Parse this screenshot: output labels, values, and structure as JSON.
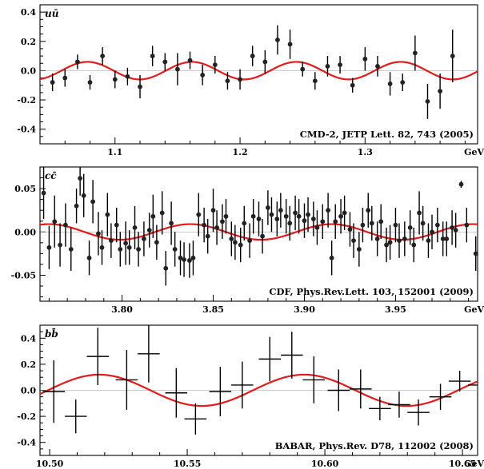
{
  "chart_data": [
    {
      "type": "scatter",
      "panel_label": "uū",
      "citation": "CMD-2, JETP Lett. 82, 743 (2005)",
      "x_unit": "GeV",
      "xlim": [
        1.04,
        1.39
      ],
      "ylim": [
        -0.5,
        0.45
      ],
      "x_ticks": [
        1.1,
        1.2,
        1.3
      ],
      "x_tick_labels": [
        "1.1",
        "1.2",
        "1.3"
      ],
      "y_ticks": [
        -0.4,
        -0.2,
        0.0,
        0.2,
        0.4
      ],
      "y_tick_labels": [
        "-0.4",
        "-0.2",
        "0.0",
        "0.2",
        "0.4"
      ],
      "marker": "dot",
      "points": [
        {
          "x": 1.05,
          "y": -0.08,
          "err": 0.06
        },
        {
          "x": 1.06,
          "y": -0.05,
          "err": 0.06
        },
        {
          "x": 1.07,
          "y": 0.06,
          "err": 0.05
        },
        {
          "x": 1.08,
          "y": -0.08,
          "err": 0.05
        },
        {
          "x": 1.09,
          "y": 0.1,
          "err": 0.06
        },
        {
          "x": 1.1,
          "y": -0.06,
          "err": 0.06
        },
        {
          "x": 1.11,
          "y": -0.04,
          "err": 0.06
        },
        {
          "x": 1.12,
          "y": -0.11,
          "err": 0.08
        },
        {
          "x": 1.13,
          "y": 0.1,
          "err": 0.07
        },
        {
          "x": 1.14,
          "y": 0.06,
          "err": 0.06
        },
        {
          "x": 1.15,
          "y": 0.01,
          "err": 0.11
        },
        {
          "x": 1.16,
          "y": 0.07,
          "err": 0.06
        },
        {
          "x": 1.17,
          "y": -0.03,
          "err": 0.07
        },
        {
          "x": 1.18,
          "y": 0.04,
          "err": 0.06
        },
        {
          "x": 1.19,
          "y": -0.07,
          "err": 0.06
        },
        {
          "x": 1.2,
          "y": -0.06,
          "err": 0.07
        },
        {
          "x": 1.21,
          "y": 0.1,
          "err": 0.07
        },
        {
          "x": 1.22,
          "y": 0.06,
          "err": 0.08
        },
        {
          "x": 1.23,
          "y": 0.21,
          "err": 0.1
        },
        {
          "x": 1.24,
          "y": 0.18,
          "err": 0.1
        },
        {
          "x": 1.25,
          "y": 0.01,
          "err": 0.05
        },
        {
          "x": 1.26,
          "y": -0.07,
          "err": 0.06
        },
        {
          "x": 1.27,
          "y": 0.03,
          "err": 0.07
        },
        {
          "x": 1.28,
          "y": 0.04,
          "err": 0.06
        },
        {
          "x": 1.29,
          "y": -0.1,
          "err": 0.05
        },
        {
          "x": 1.3,
          "y": 0.08,
          "err": 0.08
        },
        {
          "x": 1.31,
          "y": 0.03,
          "err": 0.07
        },
        {
          "x": 1.32,
          "y": -0.09,
          "err": 0.08
        },
        {
          "x": 1.33,
          "y": -0.08,
          "err": 0.06
        },
        {
          "x": 1.34,
          "y": 0.12,
          "err": 0.12
        },
        {
          "x": 1.35,
          "y": -0.21,
          "err": 0.12
        },
        {
          "x": 1.36,
          "y": -0.14,
          "err": 0.12
        },
        {
          "x": 1.37,
          "y": 0.1,
          "err": 0.18
        }
      ],
      "curve": {
        "color": "#e41a1c",
        "amplitude": 0.06,
        "period": 0.0835,
        "peak_x": 1.078,
        "offset": 0.0
      }
    },
    {
      "type": "scatter",
      "panel_label": "cc̄",
      "citation": "CDF, Phys.Rev.Lett. 103, 152001 (2009)",
      "x_unit": "GeV",
      "xlim": [
        3.755,
        3.995
      ],
      "ylim": [
        -0.08,
        0.075
      ],
      "x_ticks": [
        3.8,
        3.85,
        3.9,
        3.95
      ],
      "x_tick_labels": [
        "3.80",
        "3.85",
        "3.90",
        "3.95"
      ],
      "y_ticks": [
        -0.05,
        0.0,
        0.05
      ],
      "y_tick_labels": [
        "-0.05",
        "0.00",
        "0.05"
      ],
      "marker": "dot",
      "points": [
        {
          "x": 3.757,
          "y": 0.045,
          "err": 0.03
        },
        {
          "x": 3.76,
          "y": -0.018,
          "err": 0.025
        },
        {
          "x": 3.763,
          "y": 0.012,
          "err": 0.03
        },
        {
          "x": 3.766,
          "y": -0.015,
          "err": 0.025
        },
        {
          "x": 3.769,
          "y": 0.008,
          "err": 0.025
        },
        {
          "x": 3.772,
          "y": -0.02,
          "err": 0.025
        },
        {
          "x": 3.775,
          "y": 0.03,
          "err": 0.02
        },
        {
          "x": 3.777,
          "y": 0.062,
          "err": 0.02
        },
        {
          "x": 3.779,
          "y": 0.042,
          "err": 0.025
        },
        {
          "x": 3.782,
          "y": -0.03,
          "err": 0.02
        },
        {
          "x": 3.784,
          "y": 0.035,
          "err": 0.025
        },
        {
          "x": 3.787,
          "y": -0.002,
          "err": 0.025
        },
        {
          "x": 3.789,
          "y": -0.018,
          "err": 0.02
        },
        {
          "x": 3.792,
          "y": 0.02,
          "err": 0.025
        },
        {
          "x": 3.794,
          "y": -0.01,
          "err": 0.02
        },
        {
          "x": 3.797,
          "y": 0.008,
          "err": 0.02
        },
        {
          "x": 3.799,
          "y": -0.02,
          "err": 0.02
        },
        {
          "x": 3.802,
          "y": -0.013,
          "err": 0.025
        },
        {
          "x": 3.804,
          "y": -0.018,
          "err": 0.02
        },
        {
          "x": 3.807,
          "y": 0.005,
          "err": 0.025
        },
        {
          "x": 3.809,
          "y": -0.02,
          "err": 0.02
        },
        {
          "x": 3.812,
          "y": -0.008,
          "err": 0.02
        },
        {
          "x": 3.815,
          "y": 0.002,
          "err": 0.02
        },
        {
          "x": 3.817,
          "y": 0.018,
          "err": 0.025
        },
        {
          "x": 3.819,
          "y": -0.012,
          "err": 0.02
        },
        {
          "x": 3.822,
          "y": 0.022,
          "err": 0.025
        },
        {
          "x": 3.824,
          "y": -0.042,
          "err": 0.02
        },
        {
          "x": 3.827,
          "y": 0.01,
          "err": 0.025
        },
        {
          "x": 3.829,
          "y": -0.02,
          "err": 0.02
        },
        {
          "x": 3.832,
          "y": -0.03,
          "err": 0.02
        },
        {
          "x": 3.834,
          "y": -0.032,
          "err": 0.02
        },
        {
          "x": 3.837,
          "y": -0.033,
          "err": 0.02
        },
        {
          "x": 3.839,
          "y": -0.03,
          "err": 0.02
        },
        {
          "x": 3.842,
          "y": 0.02,
          "err": 0.025
        },
        {
          "x": 3.845,
          "y": 0.008,
          "err": 0.02
        },
        {
          "x": 3.847,
          "y": -0.005,
          "err": 0.02
        },
        {
          "x": 3.85,
          "y": 0.025,
          "err": 0.025
        },
        {
          "x": 3.852,
          "y": 0.005,
          "err": 0.02
        },
        {
          "x": 3.855,
          "y": 0.012,
          "err": 0.02
        },
        {
          "x": 3.857,
          "y": 0.018,
          "err": 0.02
        },
        {
          "x": 3.86,
          "y": -0.008,
          "err": 0.02
        },
        {
          "x": 3.862,
          "y": -0.012,
          "err": 0.02
        },
        {
          "x": 3.865,
          "y": -0.015,
          "err": 0.02
        },
        {
          "x": 3.867,
          "y": 0.01,
          "err": 0.02
        },
        {
          "x": 3.87,
          "y": -0.01,
          "err": 0.02
        },
        {
          "x": 3.872,
          "y": 0.018,
          "err": 0.02
        },
        {
          "x": 3.875,
          "y": 0.015,
          "err": 0.02
        },
        {
          "x": 3.877,
          "y": -0.005,
          "err": 0.02
        },
        {
          "x": 3.88,
          "y": 0.028,
          "err": 0.02
        },
        {
          "x": 3.882,
          "y": 0.02,
          "err": 0.02
        },
        {
          "x": 3.885,
          "y": 0.015,
          "err": 0.02
        },
        {
          "x": 3.887,
          "y": 0.025,
          "err": 0.02
        },
        {
          "x": 3.89,
          "y": 0.018,
          "err": 0.02
        },
        {
          "x": 3.892,
          "y": 0.01,
          "err": 0.02
        },
        {
          "x": 3.895,
          "y": 0.022,
          "err": 0.02
        },
        {
          "x": 3.897,
          "y": 0.018,
          "err": 0.02
        },
        {
          "x": 3.9,
          "y": 0.013,
          "err": 0.02
        },
        {
          "x": 3.902,
          "y": 0.02,
          "err": 0.02
        },
        {
          "x": 3.905,
          "y": 0.015,
          "err": 0.02
        },
        {
          "x": 3.907,
          "y": 0.005,
          "err": 0.02
        },
        {
          "x": 3.91,
          "y": 0.012,
          "err": 0.02
        },
        {
          "x": 3.913,
          "y": 0.025,
          "err": 0.02
        },
        {
          "x": 3.915,
          "y": -0.03,
          "err": 0.02
        },
        {
          "x": 3.917,
          "y": 0.012,
          "err": 0.02
        },
        {
          "x": 3.92,
          "y": 0.018,
          "err": 0.02
        },
        {
          "x": 3.922,
          "y": 0.022,
          "err": 0.02
        },
        {
          "x": 3.925,
          "y": 0.003,
          "err": 0.02
        },
        {
          "x": 3.927,
          "y": -0.01,
          "err": 0.02
        },
        {
          "x": 3.93,
          "y": -0.02,
          "err": 0.02
        },
        {
          "x": 3.932,
          "y": 0.008,
          "err": 0.02
        },
        {
          "x": 3.935,
          "y": 0.025,
          "err": 0.02
        },
        {
          "x": 3.937,
          "y": 0.01,
          "err": 0.02
        },
        {
          "x": 3.94,
          "y": -0.008,
          "err": 0.02
        },
        {
          "x": 3.942,
          "y": 0.012,
          "err": 0.02
        },
        {
          "x": 3.945,
          "y": -0.015,
          "err": 0.02
        },
        {
          "x": 3.947,
          "y": -0.012,
          "err": 0.02
        },
        {
          "x": 3.95,
          "y": 0.008,
          "err": 0.02
        },
        {
          "x": 3.952,
          "y": -0.01,
          "err": 0.02
        },
        {
          "x": 3.955,
          "y": -0.008,
          "err": 0.02
        },
        {
          "x": 3.958,
          "y": 0.005,
          "err": 0.02
        },
        {
          "x": 3.96,
          "y": -0.015,
          "err": 0.02
        },
        {
          "x": 3.963,
          "y": 0.022,
          "err": 0.025
        },
        {
          "x": 3.965,
          "y": 0.01,
          "err": 0.02
        },
        {
          "x": 3.968,
          "y": -0.01,
          "err": 0.02
        },
        {
          "x": 3.97,
          "y": 0.0,
          "err": 0.02
        },
        {
          "x": 3.973,
          "y": 0.008,
          "err": 0.02
        },
        {
          "x": 3.976,
          "y": -0.008,
          "err": 0.02
        },
        {
          "x": 3.978,
          "y": -0.008,
          "err": 0.02
        },
        {
          "x": 3.981,
          "y": 0.005,
          "err": 0.02
        },
        {
          "x": 3.983,
          "y": 0.002,
          "err": 0.02
        },
        {
          "x": 3.986,
          "y": 0.055,
          "err": 0.004
        },
        {
          "x": 3.989,
          "y": 0.008,
          "err": 0.02
        },
        {
          "x": 3.994,
          "y": -0.025,
          "err": 0.02
        }
      ],
      "curve": {
        "color": "#e41a1c",
        "amplitude": 0.009,
        "period": 0.0775,
        "peak_x": 3.8375,
        "offset": 0.0
      }
    },
    {
      "type": "scatter",
      "panel_label": "bb̄",
      "citation": "BABAR, Phys.Rev. D78, 112002 (2008)",
      "x_unit": "GeV",
      "xlim": [
        10.4965,
        10.6555
      ],
      "ylim": [
        -0.5,
        0.5
      ],
      "x_ticks": [
        10.5,
        10.55,
        10.6,
        10.65
      ],
      "x_tick_labels": [
        "10.50",
        "10.55",
        "10.60",
        "10.65"
      ],
      "y_ticks": [
        -0.4,
        -0.2,
        0.0,
        0.2,
        0.4
      ],
      "y_tick_labels": [
        "-0.4",
        "-0.2",
        "0.0",
        "0.2",
        "0.4"
      ],
      "marker": "cross",
      "points": [
        {
          "x": 10.5015,
          "y": -0.01,
          "err": 0.24,
          "xerr": 0.004
        },
        {
          "x": 10.5095,
          "y": -0.2,
          "err": 0.13,
          "xerr": 0.004
        },
        {
          "x": 10.5175,
          "y": 0.26,
          "err": 0.22,
          "xerr": 0.004
        },
        {
          "x": 10.528,
          "y": 0.08,
          "err": 0.23,
          "xerr": 0.004
        },
        {
          "x": 10.536,
          "y": 0.28,
          "err": 0.22,
          "xerr": 0.004
        },
        {
          "x": 10.546,
          "y": -0.02,
          "err": 0.19,
          "xerr": 0.004
        },
        {
          "x": 10.553,
          "y": -0.22,
          "err": 0.12,
          "xerr": 0.004
        },
        {
          "x": 10.562,
          "y": -0.01,
          "err": 0.19,
          "xerr": 0.004
        },
        {
          "x": 10.57,
          "y": 0.04,
          "err": 0.18,
          "xerr": 0.004
        },
        {
          "x": 10.58,
          "y": 0.24,
          "err": 0.17,
          "xerr": 0.004
        },
        {
          "x": 10.588,
          "y": 0.27,
          "err": 0.18,
          "xerr": 0.004
        },
        {
          "x": 10.596,
          "y": 0.08,
          "err": 0.18,
          "xerr": 0.004
        },
        {
          "x": 10.605,
          "y": 0.0,
          "err": 0.16,
          "xerr": 0.004
        },
        {
          "x": 10.613,
          "y": 0.01,
          "err": 0.15,
          "xerr": 0.004
        },
        {
          "x": 10.62,
          "y": -0.14,
          "err": 0.09,
          "xerr": 0.004
        },
        {
          "x": 10.627,
          "y": -0.11,
          "err": 0.1,
          "xerr": 0.004
        },
        {
          "x": 10.634,
          "y": -0.17,
          "err": 0.1,
          "xerr": 0.004
        },
        {
          "x": 10.642,
          "y": -0.05,
          "err": 0.1,
          "xerr": 0.004
        },
        {
          "x": 10.649,
          "y": 0.07,
          "err": 0.08,
          "xerr": 0.004
        },
        {
          "x": 10.656,
          "y": 0.04,
          "err": 0.1,
          "xerr": 0.004
        }
      ],
      "curve": {
        "color": "#e41a1c",
        "amplitude": 0.12,
        "period": 0.0745,
        "peak_x": 10.518,
        "offset": 0.0
      }
    }
  ]
}
